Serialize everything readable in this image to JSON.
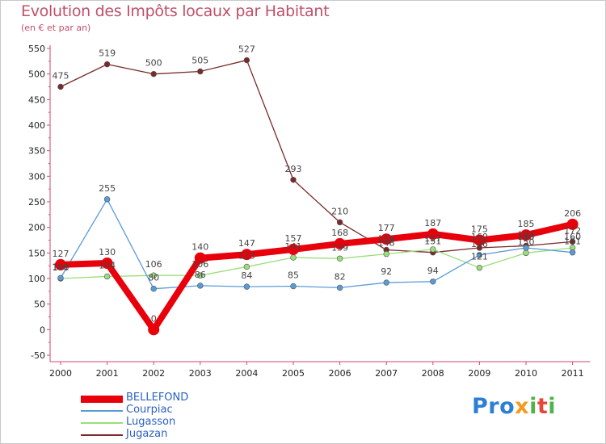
{
  "chart_data": {
    "type": "line",
    "title": "Evolution des Impôts locaux par Habitant",
    "subtitle": "(en € et par an)",
    "xlabel": "",
    "ylabel": "",
    "categories": [
      "2000",
      "2001",
      "2002",
      "2003",
      "2004",
      "2005",
      "2006",
      "2007",
      "2008",
      "2009",
      "2010",
      "2011"
    ],
    "ylim": [
      -50,
      550
    ],
    "yticks": [
      "-50",
      "0",
      "50",
      "100",
      "150",
      "200",
      "250",
      "300",
      "350",
      "400",
      "450",
      "500",
      "550"
    ],
    "grid": false,
    "legend_position": "bottom-left",
    "series": [
      {
        "name": "BELLEFOND",
        "color": "#e8000b",
        "values": [
          127,
          130,
          0,
          140,
          147,
          157,
          168,
          177,
          187,
          175,
          185,
          206
        ],
        "labels": [
          "127",
          "130",
          "0",
          "140",
          "147",
          "157",
          "168",
          "177",
          "187",
          "175",
          "185",
          "206"
        ]
      },
      {
        "name": "Courpiac",
        "color": "#5b9bd5",
        "values": [
          101,
          255,
          80,
          86,
          84,
          85,
          82,
          92,
          94,
          146,
          160,
          151
        ],
        "labels": [
          "101",
          "255",
          "80",
          "86",
          "84",
          "85",
          "82",
          "92",
          "94",
          "146",
          "160",
          "151"
        ]
      },
      {
        "name": "Lugasson",
        "color": "#9ade7b",
        "values": [
          100,
          104,
          106,
          106,
          123,
          141,
          139,
          148,
          157,
          121,
          150,
          160
        ],
        "labels": [
          "100",
          "104",
          "106",
          "106",
          "123",
          "141",
          "139",
          "148",
          "157",
          "121",
          "150",
          "160"
        ]
      },
      {
        "name": "Jugazan",
        "color": "#7a2a2a",
        "values": [
          475,
          519,
          500,
          505,
          527,
          293,
          210,
          156,
          151,
          160,
          164,
          172
        ],
        "labels": [
          "475",
          "519",
          "500",
          "505",
          "527",
          "293",
          "210",
          "156",
          "151",
          "160",
          "164",
          "172"
        ]
      }
    ]
  },
  "logo": {
    "p1": "Pro",
    "p2": "x",
    "p3": "i",
    "p4": "t",
    "p5": "i"
  }
}
